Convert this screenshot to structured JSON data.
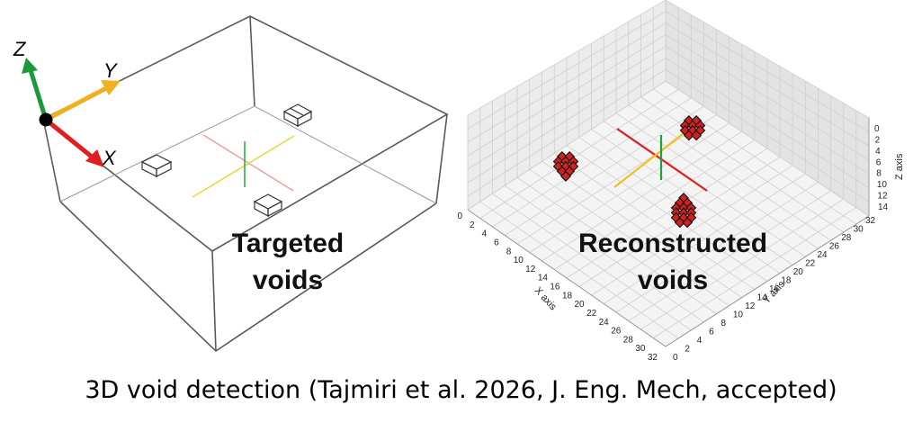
{
  "left_panel": {
    "axes": {
      "z": "Z",
      "y": "Y",
      "x": "X"
    },
    "label_line1": "Targeted",
    "label_line2": "voids"
  },
  "right_panel": {
    "label_line1": "Reconstructed",
    "label_line2": "voids",
    "x_axis_label": "X axis",
    "y_axis_label": "Y axis",
    "z_axis_label": "Z axis",
    "x_ticks": [
      "0",
      "2",
      "4",
      "6",
      "8",
      "10",
      "12",
      "14",
      "16",
      "18",
      "20",
      "22",
      "24",
      "26",
      "28",
      "30",
      "32"
    ],
    "y_ticks": [
      "0",
      "2",
      "4",
      "6",
      "8",
      "10",
      "12",
      "14",
      "16",
      "18",
      "20",
      "22",
      "24",
      "26",
      "28",
      "30",
      "32"
    ],
    "z_ticks": [
      "0",
      "2",
      "4",
      "6",
      "8",
      "10",
      "12",
      "14"
    ]
  },
  "caption": "3D void detection (Tajmiri et al. 2026, J. Eng. Mech, accepted)",
  "colors": {
    "axis_x": "#e02020",
    "axis_y": "#f0b020",
    "axis_z": "#1a9a3a",
    "box": "#555555",
    "grid": "#cfcfcf",
    "void_fill": "#d02020"
  }
}
